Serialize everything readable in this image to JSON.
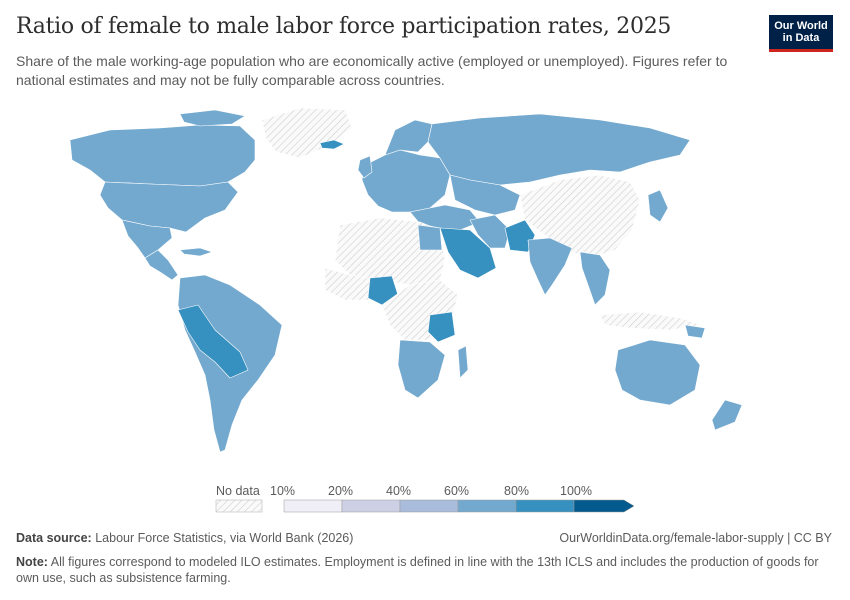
{
  "header": {
    "title": "Ratio of female to male labor force participation rates, 2025",
    "subtitle": "Share of the male working-age population who are economically active (employed or unemployed). Figures refer to national estimates and may not be fully comparable across countries."
  },
  "logo": {
    "line1": "Our World",
    "line2": "in Data"
  },
  "colors": {
    "no_data_hatch": "#cfcfcf",
    "bins": [
      "#f0eff7",
      "#cdcfe4",
      "#a9bcdb",
      "#74a9cf",
      "#3690c0",
      "#045a8d"
    ],
    "border": "#ffffff"
  },
  "map": {
    "projection": "robinson",
    "regions": [
      {
        "name": "North America",
        "value_range": "60-80%"
      },
      {
        "name": "Greenland",
        "value_range": "No data"
      },
      {
        "name": "Central America",
        "value_range": "60-80%"
      },
      {
        "name": "South America",
        "value_range": "60-80%"
      },
      {
        "name": "Peru and Bolivia",
        "value_range": "80-100%"
      },
      {
        "name": "Europe",
        "value_range": "60-80%"
      },
      {
        "name": "Iceland",
        "value_range": "80-100%"
      },
      {
        "name": "Russia",
        "value_range": "60-80%"
      },
      {
        "name": "China and Mongolia",
        "value_range": "No data"
      },
      {
        "name": "Sahara and North Africa",
        "value_range": "No data"
      },
      {
        "name": "Nigeria",
        "value_range": "80-100%"
      },
      {
        "name": "Tanzania",
        "value_range": "80-100%"
      },
      {
        "name": "Southern Africa",
        "value_range": "60-80%"
      },
      {
        "name": "Saudi Arabia",
        "value_range": "80-100%"
      },
      {
        "name": "Pakistan",
        "value_range": "80-100%"
      },
      {
        "name": "India",
        "value_range": "60-80%"
      },
      {
        "name": "Southeast Asia",
        "value_range": "60-80%"
      },
      {
        "name": "Japan",
        "value_range": "60-80%"
      },
      {
        "name": "Australia",
        "value_range": "60-80%"
      },
      {
        "name": "New Zealand",
        "value_range": "60-80%"
      }
    ]
  },
  "legend": {
    "no_data_label": "No data",
    "ticks": [
      "10%",
      "20%",
      "40%",
      "60%",
      "80%",
      "100%"
    ]
  },
  "footer": {
    "source_label": "Data source:",
    "source_text": " Labour Force Statistics, via World Bank (2026)",
    "url": "OurWorldinData.org/female-labor-supply | CC BY",
    "note_label": "Note:",
    "note_text": " All figures correspond to modeled ILO estimates. Employment is defined in line with the 13th ICLS and includes the production of goods for own use, such as subsistence farming."
  }
}
